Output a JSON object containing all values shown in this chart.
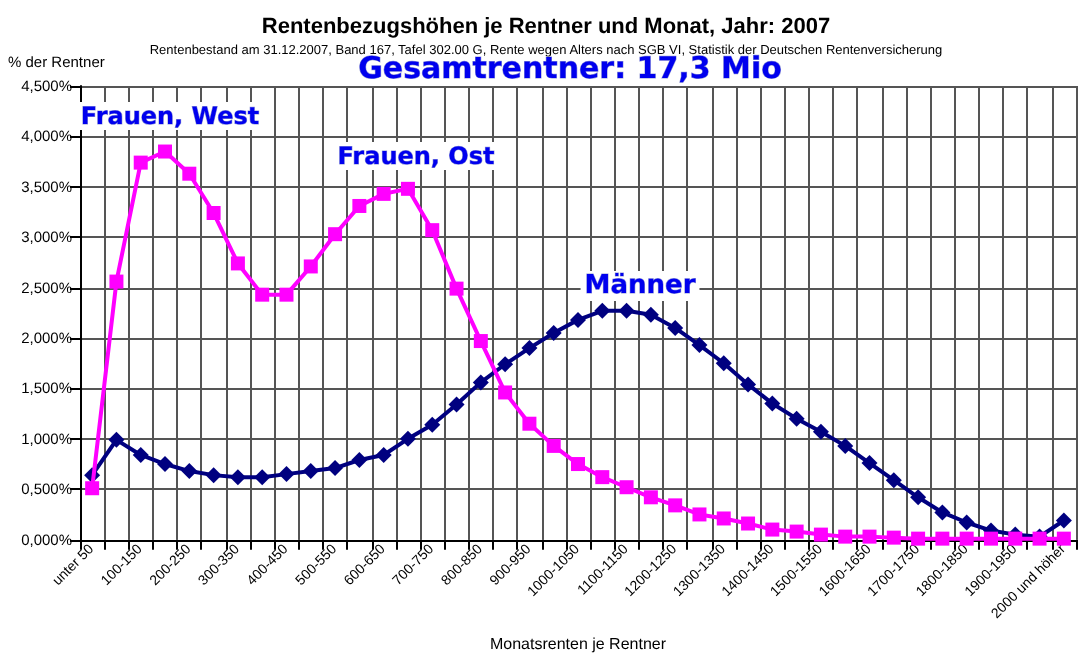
{
  "chart_data": {
    "type": "line",
    "title": "Rentenbezugshöhen je Rentner und Monat, Jahr: 2007",
    "subtitle": "Rentenbestand am 31.12.2007, Band 167, Tafel 302.00 G, Rente wegen Alters nach SGB VI, Statistik der Deutschen Rentenversicherung",
    "xlabel": "Monatsrenten je Rentner",
    "ylabel": "% der Rentner",
    "categories": [
      "unter 50",
      null,
      "100-150",
      null,
      "200-250",
      null,
      "300-350",
      null,
      "400-450",
      null,
      "500-550",
      null,
      "600-650",
      null,
      "700-750",
      null,
      "800-850",
      null,
      "900-950",
      null,
      "1000-1050",
      null,
      "1100-1150",
      null,
      "1200-1250",
      null,
      "1300-1350",
      null,
      "1400-1450",
      null,
      "1500-1550",
      null,
      "1600-1650",
      null,
      "1700-1750",
      null,
      "1800-1850",
      null,
      "1900-1950",
      null,
      "2000 und höher"
    ],
    "series": [
      {
        "color": "#ff00ff",
        "marker": "square",
        "values": [
          0.51,
          2.56,
          3.74,
          3.85,
          3.63,
          3.24,
          2.74,
          2.43,
          2.43,
          2.71,
          3.03,
          3.31,
          3.43,
          3.48,
          3.07,
          2.49,
          1.97,
          1.46,
          1.15,
          0.93,
          0.75,
          0.62,
          0.52,
          0.42,
          0.34,
          0.25,
          0.21,
          0.16,
          0.1,
          0.08,
          0.05,
          0.03,
          0.03,
          0.02,
          0.01,
          0.01,
          0.01,
          0.01,
          0.01,
          0.01,
          0.01
        ]
      },
      {
        "color": "#000080",
        "marker": "diamond",
        "values": [
          0.64,
          0.99,
          0.84,
          0.75,
          0.68,
          0.64,
          0.62,
          0.62,
          0.65,
          0.68,
          0.71,
          0.79,
          0.84,
          1.0,
          1.14,
          1.34,
          1.56,
          1.74,
          1.9,
          2.05,
          2.18,
          2.27,
          2.27,
          2.23,
          2.1,
          1.93,
          1.75,
          1.54,
          1.35,
          1.2,
          1.07,
          0.93,
          0.76,
          0.59,
          0.42,
          0.27,
          0.17,
          0.09,
          0.05,
          0.03,
          0.19
        ]
      }
    ],
    "ylim": [
      0,
      4.5
    ],
    "yticks": [
      {
        "value": 0,
        "label": "0,000%"
      },
      {
        "value": 0.5,
        "label": "0,500%"
      },
      {
        "value": 1,
        "label": "1,000%"
      },
      {
        "value": 1.5,
        "label": "1,500%"
      },
      {
        "value": 2,
        "label": "2,000%"
      },
      {
        "value": 2.5,
        "label": "2,500%"
      },
      {
        "value": 3,
        "label": "3,000%"
      },
      {
        "value": 3.5,
        "label": "3,500%"
      },
      {
        "value": 4,
        "label": "4,000%"
      },
      {
        "value": 4.5,
        "label": "4,500%"
      }
    ],
    "grid": true,
    "annotations": [
      "Gesamtrentner: 17,3 Mio",
      "Frauen, West",
      "Frauen, Ost",
      "Männer"
    ]
  }
}
